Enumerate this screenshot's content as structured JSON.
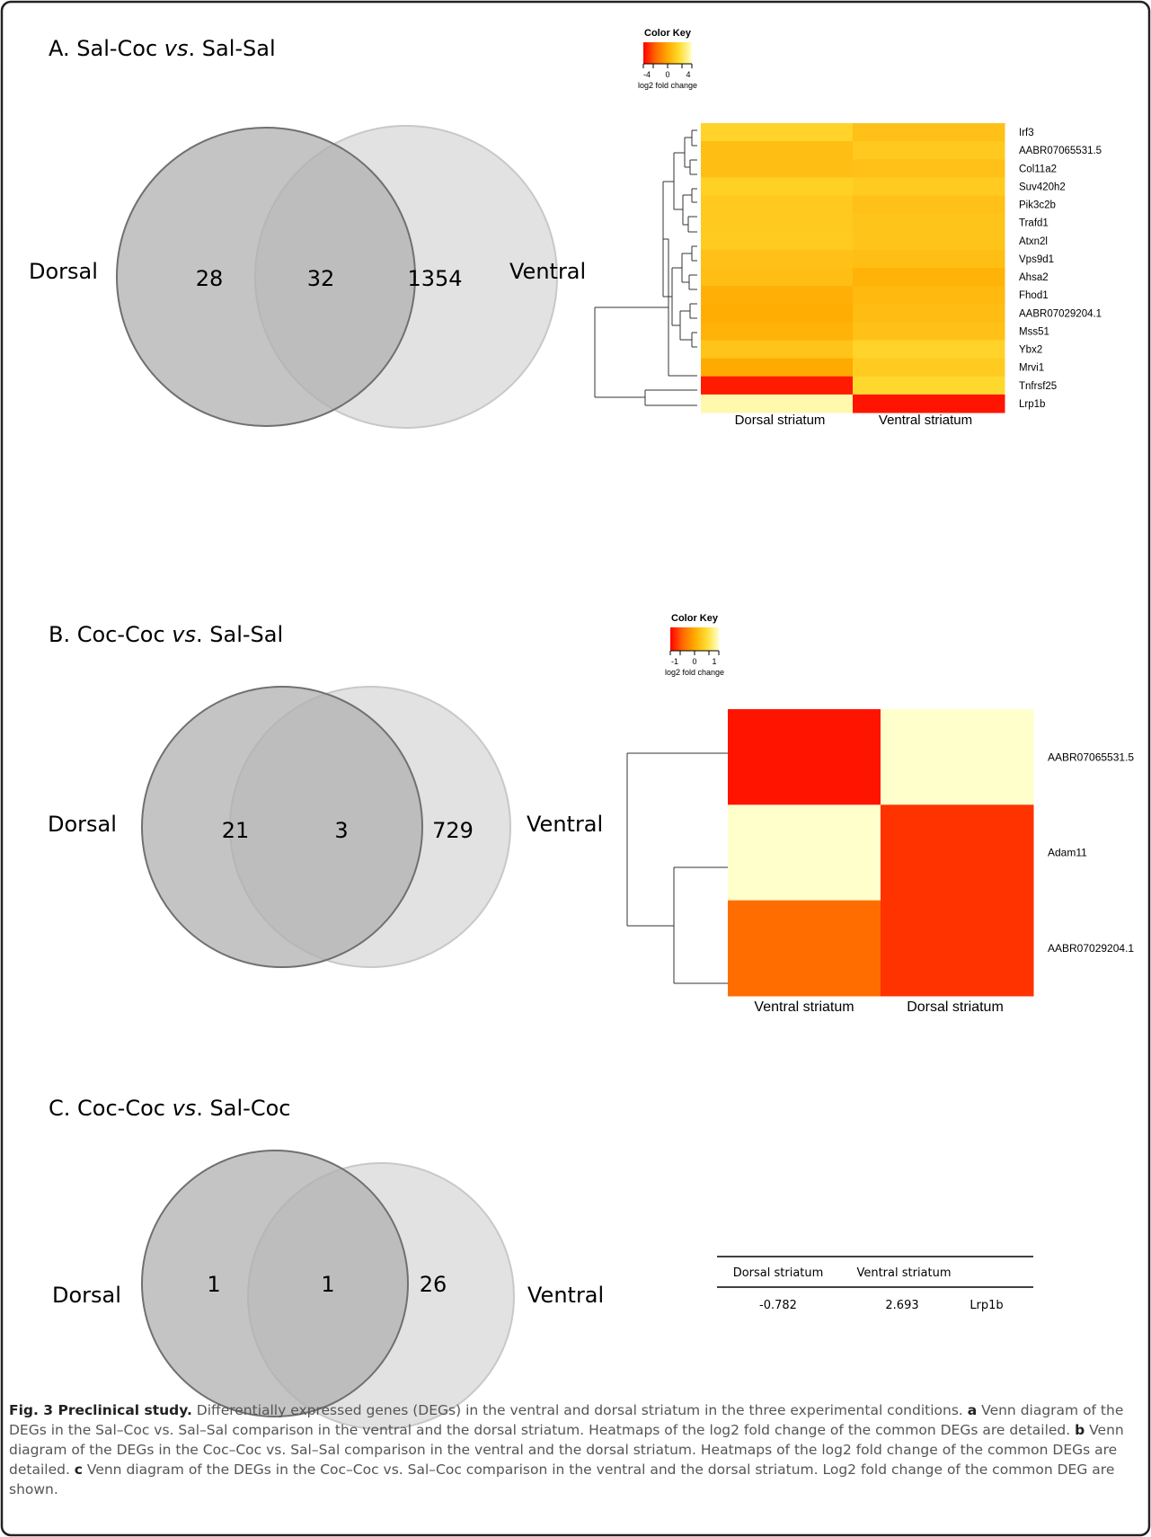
{
  "panels": [
    {
      "title_pre": "A. Sal-Coc ",
      "title_vs": "vs",
      "title_post": ". Sal-Sal",
      "venn": {
        "left_label": "Dorsal",
        "right_label": "Ventral",
        "left_only": "28",
        "overlap": "32",
        "right_only": "1354"
      }
    },
    {
      "title_pre": "B. Coc-Coc ",
      "title_vs": "vs",
      "title_post": ". Sal-Sal",
      "venn": {
        "left_label": "Dorsal",
        "right_label": "Ventral",
        "left_only": "21",
        "overlap": "3",
        "right_only": "729"
      }
    },
    {
      "title_pre": "C. Coc-Coc ",
      "title_vs": "vs",
      "title_post": ". Sal-Coc",
      "venn": {
        "left_label": "Dorsal",
        "right_label": "Ventral",
        "left_only": "1",
        "overlap": "1",
        "right_only": "26"
      }
    }
  ],
  "chart_data": [
    {
      "type": "heatmap",
      "color_key_title": "Color Key",
      "color_key_ticks": [
        "-4",
        "0",
        "4"
      ],
      "color_key_label": "log2 fold change",
      "columns": [
        "Dorsal striatum",
        "Ventral striatum"
      ],
      "rows": [
        "Irf3",
        "AABR07065531.5",
        "Col11a2",
        "Suv420h2",
        "Pik3c2b",
        "Trafd1",
        "Atxn2l",
        "Vps9d1",
        "Ahsa2",
        "Fhod1",
        "AABR07029204.1",
        "Mss51",
        "Ybx2",
        "Mrvi1",
        "Tnfrsf25",
        "Lrp1b"
      ],
      "values": [
        [
          1.6,
          0.9
        ],
        [
          0.8,
          1.2
        ],
        [
          0.8,
          0.9
        ],
        [
          1.5,
          1.3
        ],
        [
          1.2,
          0.9
        ],
        [
          1.2,
          1.0
        ],
        [
          1.3,
          1.0
        ],
        [
          0.9,
          0.8
        ],
        [
          0.8,
          0.3
        ],
        [
          0.2,
          0.6
        ],
        [
          0.1,
          0.7
        ],
        [
          0.3,
          0.9
        ],
        [
          1.0,
          1.6
        ],
        [
          0.0,
          1.3
        ],
        [
          -3.5,
          1.8
        ],
        [
          3.6,
          -3.6
        ]
      ],
      "color_range": [
        -4,
        4
      ]
    },
    {
      "type": "heatmap",
      "color_key_title": "Color Key",
      "color_key_ticks": [
        "-1",
        "0",
        "1"
      ],
      "color_key_label": "log2 fold change",
      "columns": [
        "Ventral striatum",
        "Dorsal striatum"
      ],
      "rows": [
        "AABR07065531.5",
        "Adam11",
        "AABR07029204.1"
      ],
      "values": [
        [
          -0.9,
          1.0
        ],
        [
          1.0,
          -0.75
        ],
        [
          -0.45,
          -0.75
        ]
      ],
      "color_range": [
        -1,
        1
      ]
    },
    {
      "type": "table",
      "columns": [
        "Dorsal striatum",
        "Ventral striatum",
        ""
      ],
      "rows": [
        [
          "-0.782",
          "2.693",
          "Lrp1b"
        ]
      ]
    }
  ],
  "caption": {
    "label": "Fig. 3 Preclinical study.",
    "intro": " Differentially expressed genes (DEGs) in the ventral and dorsal striatum in the three experimental conditions. ",
    "a_letter": "a",
    "a_text": " Venn diagram of the DEGs in the Sal–Coc vs. Sal–Sal comparison in the ventral and the dorsal striatum. Heatmaps of the log2 fold change of the common DEGs are detailed. ",
    "b_letter": "b",
    "b_text": " Venn diagram of the DEGs in the Coc–Coc vs. Sal–Sal comparison in the ventral and the dorsal striatum. Heatmaps of the log2 fold change of the common DEGs are detailed. ",
    "c_letter": "c",
    "c_text": " Venn diagram of the DEGs in the Coc–Coc vs. Sal–Coc comparison in the ventral and the dorsal striatum. Log2 fold change of the common DEG are shown."
  }
}
